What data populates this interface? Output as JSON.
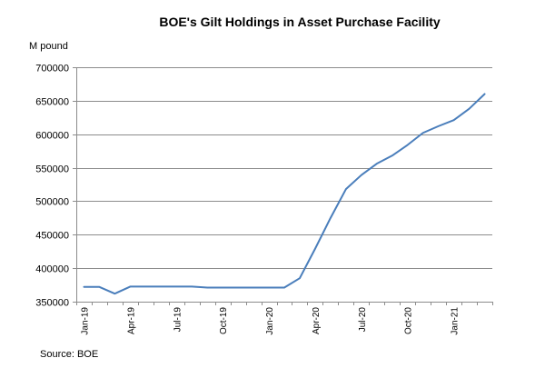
{
  "chart_data": {
    "type": "line",
    "title": "BOE's Gilt Holdings in Asset Purchase Facility",
    "ylabel": "M pound",
    "xlabel": "",
    "source": "Source: BOE",
    "ylim": [
      350000,
      700000
    ],
    "yticks": [
      350000,
      400000,
      450000,
      500000,
      550000,
      600000,
      650000,
      700000
    ],
    "ytick_labels": [
      "350000",
      "400000",
      "450000",
      "500000",
      "550000",
      "600000",
      "650000",
      "700000"
    ],
    "grid": true,
    "legend": "none",
    "categories": [
      "Jan-19",
      "Feb-19",
      "Mar-19",
      "Apr-19",
      "May-19",
      "Jun-19",
      "Jul-19",
      "Aug-19",
      "Sep-19",
      "Oct-19",
      "Nov-19",
      "Dec-19",
      "Jan-20",
      "Feb-20",
      "Mar-20",
      "Apr-20",
      "May-20",
      "Jun-20",
      "Jul-20",
      "Aug-20",
      "Sep-20",
      "Oct-20",
      "Nov-20",
      "Dec-20",
      "Jan-21",
      "Feb-21",
      "Mar-21"
    ],
    "xtick_indices": [
      0,
      3,
      6,
      9,
      12,
      15,
      18,
      21,
      24
    ],
    "xtick_labels": [
      "Jan-19",
      "Apr-19",
      "Jul-19",
      "Oct-19",
      "Jan-20",
      "Apr-20",
      "Jul-20",
      "Oct-20",
      "Jan-21"
    ],
    "series": [
      {
        "name": "Gilt Holdings",
        "color": "#4a7ebb",
        "values": [
          372000,
          372000,
          362000,
          372500,
          372500,
          372500,
          372500,
          372500,
          371000,
          371000,
          371000,
          371000,
          371000,
          371000,
          385000,
          429000,
          475000,
          518000,
          539000,
          556000,
          568000,
          584000,
          602000,
          612000,
          621000,
          638000,
          660000
        ]
      }
    ]
  }
}
